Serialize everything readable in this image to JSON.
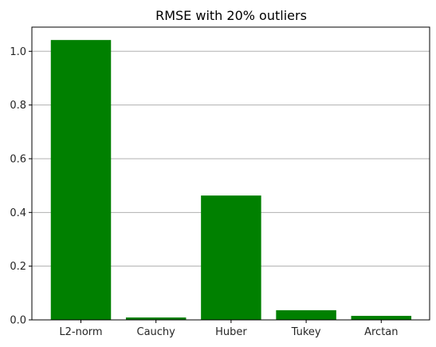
{
  "chart_data": {
    "type": "bar",
    "title": "RMSE with 20% outliers",
    "categories": [
      "L2-norm",
      "Cauchy",
      "Huber",
      "Tukey",
      "Arctan"
    ],
    "values": [
      1.042,
      0.009,
      0.463,
      0.036,
      0.015
    ],
    "xlabel": "",
    "ylabel": "",
    "ylim": [
      0,
      1.09
    ],
    "yticks": [
      0.0,
      0.2,
      0.4,
      0.6,
      0.8,
      1.0
    ],
    "ytick_labels": [
      "0.0",
      "0.2",
      "0.4",
      "0.6",
      "0.8",
      "1.0"
    ],
    "grid": "y-axis only",
    "bar_color": "#008000",
    "legend": "none"
  }
}
